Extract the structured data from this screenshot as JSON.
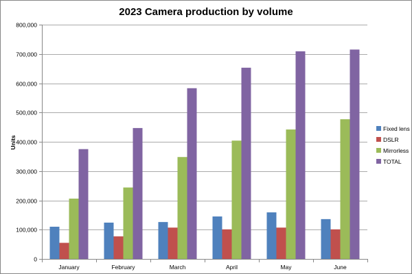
{
  "chart_data": {
    "type": "bar",
    "title": "2023 Camera production by volume",
    "xlabel": "",
    "ylabel": "Units",
    "categories": [
      "January",
      "February",
      "March",
      "April",
      "May",
      "June"
    ],
    "ylim": [
      0,
      800000
    ],
    "yticks": [
      0,
      100000,
      200000,
      300000,
      400000,
      500000,
      600000,
      700000,
      800000
    ],
    "ytick_labels": [
      "0",
      "100,000",
      "200,000",
      "300,000",
      "400,000",
      "500,000",
      "600,000",
      "700,000",
      "800,000"
    ],
    "grid": true,
    "legend_position": "right",
    "series": [
      {
        "name": "Fixed lens",
        "color": "#4f81bd",
        "values": [
          110000,
          124000,
          126000,
          145000,
          159000,
          136000
        ]
      },
      {
        "name": "DSLR",
        "color": "#c0504d",
        "values": [
          55000,
          77000,
          107000,
          101000,
          107000,
          101000
        ]
      },
      {
        "name": "Mirrorless",
        "color": "#9bbb59",
        "values": [
          206000,
          244000,
          348000,
          404000,
          442000,
          477000
        ]
      },
      {
        "name": "TOTAL",
        "color": "#8064a2",
        "values": [
          375000,
          447000,
          583000,
          653000,
          709000,
          715000
        ]
      }
    ]
  }
}
